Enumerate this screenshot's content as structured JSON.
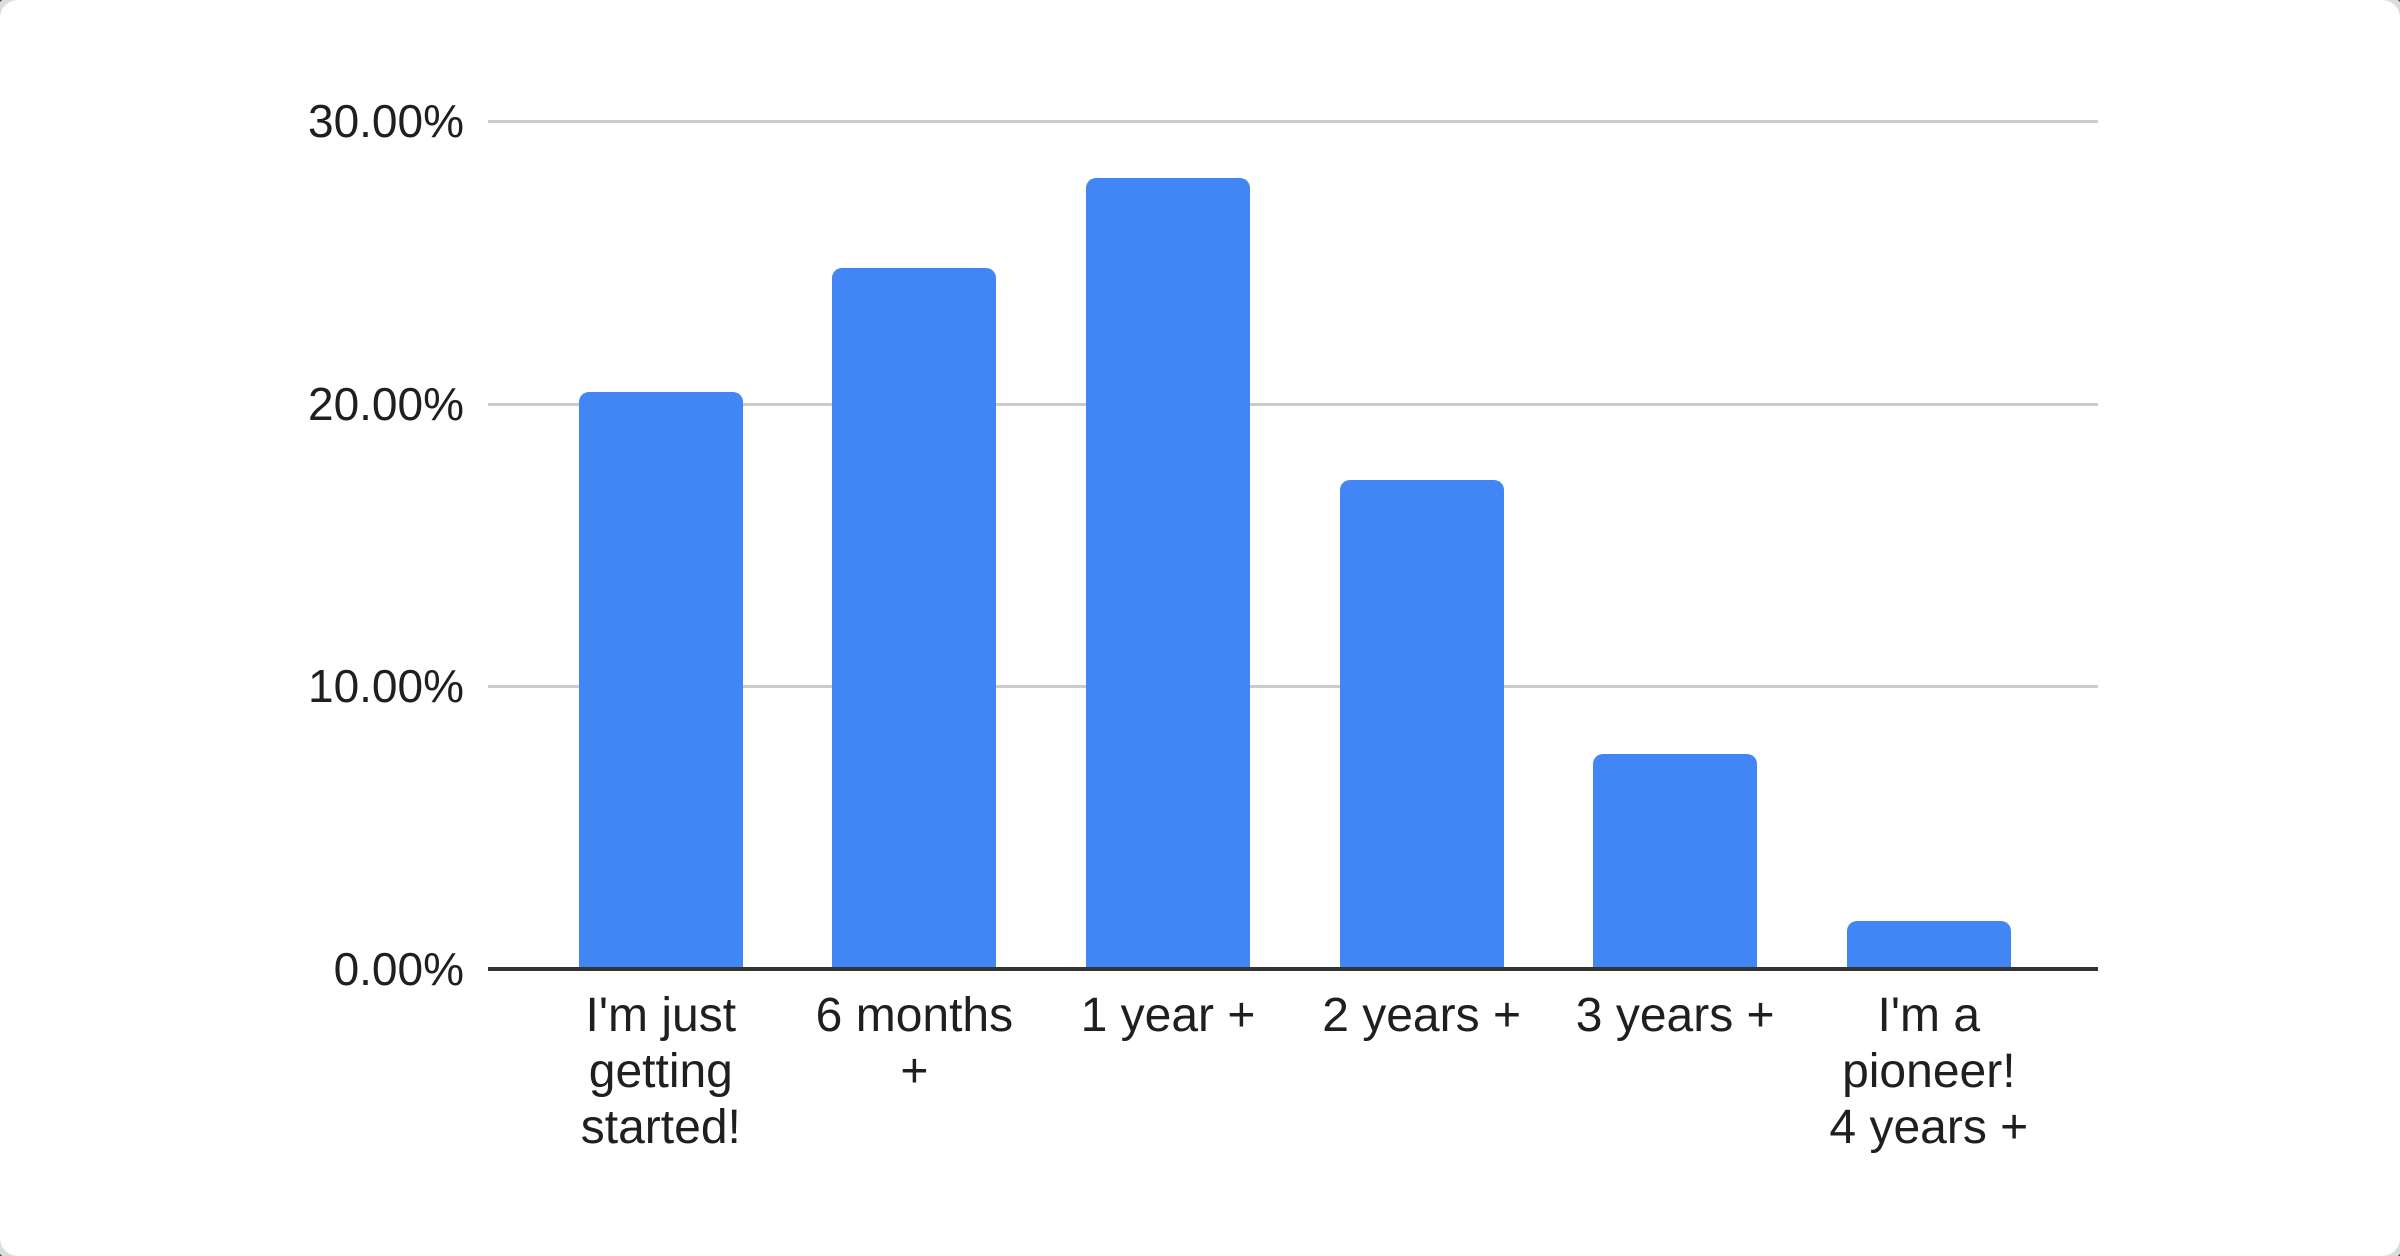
{
  "page": {
    "background_color": "#3b5144",
    "card_color": "#ffffff",
    "card_edge_color": "#d9dedb"
  },
  "chart_data": {
    "type": "bar",
    "title": "",
    "xlabel": "",
    "ylabel": "",
    "categories": [
      "I'm just getting started!",
      "6 months +",
      "1 year +",
      "2 years +",
      "3 years +",
      "I'm a pioneer! 4 years +"
    ],
    "category_lines": [
      [
        "I'm just",
        "getting",
        "started!"
      ],
      [
        "6 months",
        "+"
      ],
      [
        "1 year +"
      ],
      [
        "2 years +"
      ],
      [
        "3 years +"
      ],
      [
        "I'm a",
        "pioneer!",
        "4 years +"
      ]
    ],
    "values": [
      20.4,
      24.8,
      28.0,
      17.3,
      7.6,
      1.7
    ],
    "unit": "%",
    "ylim": [
      0,
      30
    ],
    "ytick_step": 10,
    "ytick_labels": [
      "30.00%",
      "20.00%",
      "10.00%",
      "0.00%"
    ],
    "grid": true,
    "legend": "none",
    "bar_color": "#4285f4",
    "gridline_color": "#cccccc",
    "axis_line_color": "#333333",
    "label_color": "#1f1f1f"
  }
}
